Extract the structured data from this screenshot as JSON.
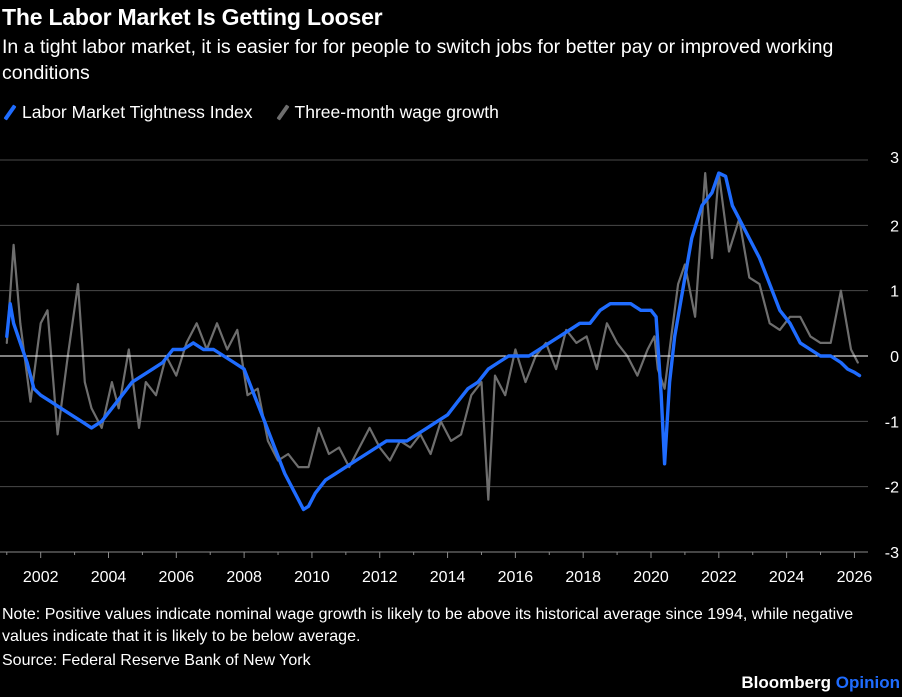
{
  "header": {
    "title": "The Labor Market Is Getting Looser",
    "subtitle": "In a tight labor market, it is easier for for people to switch jobs for better pay or improved working conditions"
  },
  "footer": {
    "note": "Note: Positive values indicate nominal wage growth is likely to be above its historical average since 1994, while negative values indicate that it is likely to be below average.",
    "source": "Source: Federal Reserve Bank of New York",
    "brand": "Bloomberg",
    "brand_accent": "Opinion"
  },
  "colors": {
    "background": "#000000",
    "tightness": "#1f6cff",
    "wage": "#6e6e6e",
    "grid": "#4a4a4a",
    "zero": "#ffffff",
    "text": "#ffffff"
  },
  "chart_data": {
    "type": "line",
    "legend_position": "top-left",
    "grid": true,
    "xlim": [
      2000.8,
      2026.4
    ],
    "ylim": [
      -3,
      3
    ],
    "x_ticks": [
      "2002",
      "2004",
      "2006",
      "2008",
      "2010",
      "2012",
      "2014",
      "2016",
      "2018",
      "2020",
      "2022",
      "2024",
      "2026"
    ],
    "y_ticks": [
      "3",
      "2",
      "1",
      "0",
      "-1",
      "-2",
      "-3"
    ],
    "series": [
      {
        "name": "Labor Market Tightness Index",
        "color": "#1f6cff",
        "x": [
          2001.0,
          2001.1,
          2001.2,
          2001.4,
          2001.6,
          2001.8,
          2002.0,
          2002.3,
          2002.6,
          2002.9,
          2003.2,
          2003.5,
          2003.8,
          2004.1,
          2004.4,
          2004.7,
          2005.0,
          2005.3,
          2005.6,
          2005.9,
          2006.2,
          2006.5,
          2006.8,
          2007.1,
          2007.4,
          2007.7,
          2008.0,
          2008.3,
          2008.6,
          2008.9,
          2009.2,
          2009.5,
          2009.75,
          2009.9,
          2010.1,
          2010.4,
          2010.7,
          2011.0,
          2011.3,
          2011.6,
          2011.9,
          2012.2,
          2012.5,
          2012.8,
          2013.1,
          2013.4,
          2013.7,
          2014.0,
          2014.3,
          2014.6,
          2014.9,
          2015.2,
          2015.5,
          2015.8,
          2016.1,
          2016.4,
          2016.7,
          2017.0,
          2017.3,
          2017.6,
          2017.9,
          2018.2,
          2018.5,
          2018.8,
          2019.1,
          2019.4,
          2019.7,
          2020.0,
          2020.15,
          2020.3,
          2020.4,
          2020.55,
          2020.7,
          2020.9,
          2021.2,
          2021.5,
          2021.8,
          2022.0,
          2022.2,
          2022.4,
          2022.6,
          2022.9,
          2023.2,
          2023.5,
          2023.8,
          2024.1,
          2024.4,
          2024.7,
          2025.0,
          2025.3,
          2025.6,
          2025.8,
          2026.0,
          2026.15
        ],
        "values": [
          0.3,
          0.8,
          0.5,
          0.2,
          -0.1,
          -0.5,
          -0.6,
          -0.7,
          -0.8,
          -0.9,
          -1.0,
          -1.1,
          -1.0,
          -0.8,
          -0.6,
          -0.4,
          -0.3,
          -0.2,
          -0.1,
          0.1,
          0.1,
          0.2,
          0.1,
          0.1,
          0.0,
          -0.1,
          -0.2,
          -0.6,
          -1.0,
          -1.4,
          -1.8,
          -2.1,
          -2.35,
          -2.3,
          -2.1,
          -1.9,
          -1.8,
          -1.7,
          -1.6,
          -1.5,
          -1.4,
          -1.3,
          -1.3,
          -1.3,
          -1.2,
          -1.1,
          -1.0,
          -0.9,
          -0.7,
          -0.5,
          -0.4,
          -0.2,
          -0.1,
          0.0,
          0.0,
          0.0,
          0.1,
          0.2,
          0.3,
          0.4,
          0.5,
          0.5,
          0.7,
          0.8,
          0.8,
          0.8,
          0.7,
          0.7,
          0.6,
          -0.6,
          -1.65,
          -0.4,
          0.3,
          0.9,
          1.8,
          2.3,
          2.5,
          2.8,
          2.75,
          2.3,
          2.1,
          1.8,
          1.5,
          1.1,
          0.7,
          0.5,
          0.2,
          0.1,
          0.0,
          0.0,
          -0.1,
          -0.2,
          -0.25,
          -0.3
        ]
      },
      {
        "name": "Three-month wage growth",
        "color": "#6e6e6e",
        "x": [
          2001.0,
          2001.2,
          2001.4,
          2001.7,
          2002.0,
          2002.2,
          2002.5,
          2002.8,
          2003.1,
          2003.3,
          2003.5,
          2003.8,
          2004.1,
          2004.3,
          2004.6,
          2004.9,
          2005.1,
          2005.4,
          2005.7,
          2006.0,
          2006.3,
          2006.6,
          2006.9,
          2007.2,
          2007.5,
          2007.8,
          2008.1,
          2008.4,
          2008.7,
          2009.0,
          2009.3,
          2009.6,
          2009.9,
          2010.2,
          2010.5,
          2010.8,
          2011.1,
          2011.4,
          2011.7,
          2012.0,
          2012.3,
          2012.6,
          2012.9,
          2013.2,
          2013.5,
          2013.8,
          2014.1,
          2014.4,
          2014.7,
          2015.0,
          2015.2,
          2015.4,
          2015.7,
          2016.0,
          2016.3,
          2016.6,
          2016.9,
          2017.2,
          2017.5,
          2017.8,
          2018.1,
          2018.4,
          2018.7,
          2019.0,
          2019.3,
          2019.6,
          2019.9,
          2020.1,
          2020.2,
          2020.4,
          2020.6,
          2020.8,
          2021.0,
          2021.3,
          2021.6,
          2021.8,
          2022.0,
          2022.3,
          2022.6,
          2022.9,
          2023.2,
          2023.5,
          2023.8,
          2024.1,
          2024.4,
          2024.7,
          2025.0,
          2025.3,
          2025.6,
          2025.9,
          2026.1
        ],
        "values": [
          0.2,
          1.7,
          0.5,
          -0.7,
          0.5,
          0.7,
          -1.2,
          0.0,
          1.1,
          -0.4,
          -0.8,
          -1.1,
          -0.4,
          -0.8,
          0.1,
          -1.1,
          -0.4,
          -0.6,
          0.0,
          -0.3,
          0.2,
          0.5,
          0.1,
          0.5,
          0.1,
          0.4,
          -0.6,
          -0.5,
          -1.3,
          -1.6,
          -1.5,
          -1.7,
          -1.7,
          -1.1,
          -1.5,
          -1.4,
          -1.7,
          -1.4,
          -1.1,
          -1.4,
          -1.6,
          -1.3,
          -1.4,
          -1.2,
          -1.5,
          -1.0,
          -1.3,
          -1.2,
          -0.6,
          -0.4,
          -2.2,
          -0.3,
          -0.6,
          0.1,
          -0.4,
          0.0,
          0.2,
          -0.2,
          0.4,
          0.2,
          0.3,
          -0.2,
          0.5,
          0.2,
          0.0,
          -0.3,
          0.1,
          0.3,
          -0.2,
          -0.5,
          0.3,
          1.1,
          1.4,
          0.6,
          2.8,
          1.5,
          2.8,
          1.6,
          2.1,
          1.2,
          1.1,
          0.5,
          0.4,
          0.6,
          0.6,
          0.3,
          0.2,
          0.2,
          1.0,
          0.1,
          -0.1
        ]
      }
    ]
  }
}
